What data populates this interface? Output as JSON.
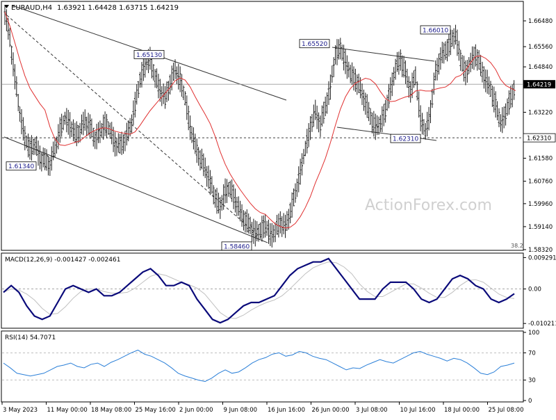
{
  "chart_data": {
    "type": "candlestick",
    "symbol_label": "EURAUD,H4",
    "ohlc_label": "1.63921 1.64428 1.63715 1.64219",
    "watermark": "ActionForex.com",
    "price_axis_labels": [
      "1.66480",
      "1.65560",
      "1.64840",
      "1.63220",
      "1.61580",
      "1.60760",
      "1.59960",
      "1.59140",
      "1.58320"
    ],
    "price_range": [
      1.5832,
      1.6715
    ],
    "current_price": {
      "value": 1.64219,
      "label": "1.64219"
    },
    "support_line": {
      "value": 1.6231,
      "label": "1.62310"
    },
    "fib_label": "38.2",
    "annotations": [
      {
        "label": "1.61340",
        "price": 1.6134
      },
      {
        "label": "1.65130",
        "price": 1.6513
      },
      {
        "label": "1.58460",
        "price": 1.5846
      },
      {
        "label": "1.65520",
        "price": 1.6552
      },
      {
        "label": "1.62310",
        "price": 1.6231
      },
      {
        "label": "1.66010",
        "price": 1.6601
      }
    ],
    "x_labels": [
      "3 May 2023",
      "11 May 00:00",
      "18 May 08:00",
      "25 May 16:00",
      "2 Jun 00:00",
      "9 Jun 08:00",
      "16 Jun 16:00",
      "26 Jun 00:00",
      "3 Jul 08:00",
      "10 Jul 16:00",
      "18 Jul 00:00",
      "25 Jul 08:00"
    ],
    "close_path": [
      1.668,
      1.658,
      1.645,
      1.632,
      1.623,
      1.619,
      1.621,
      1.616,
      1.615,
      1.614,
      1.619,
      1.626,
      1.63,
      1.628,
      1.624,
      1.626,
      1.629,
      1.627,
      1.623,
      1.625,
      1.628,
      1.626,
      1.621,
      1.62,
      1.623,
      1.626,
      1.635,
      1.644,
      1.649,
      1.651,
      1.645,
      1.64,
      1.637,
      1.643,
      1.647,
      1.644,
      1.637,
      1.627,
      1.62,
      1.616,
      1.612,
      1.607,
      1.602,
      1.598,
      1.604,
      1.605,
      1.601,
      1.596,
      1.594,
      1.591,
      1.589,
      1.59,
      1.592,
      1.588,
      1.59,
      1.593,
      1.591,
      1.597,
      1.603,
      1.611,
      1.619,
      1.627,
      1.632,
      1.628,
      1.634,
      1.641,
      1.653,
      1.655,
      1.65,
      1.646,
      1.644,
      1.64,
      1.636,
      1.63,
      1.627,
      1.628,
      1.633,
      1.64,
      1.648,
      1.651,
      1.646,
      1.64,
      1.645,
      1.63,
      1.625,
      1.633,
      1.646,
      1.652,
      1.654,
      1.657,
      1.66,
      1.651,
      1.646,
      1.65,
      1.653,
      1.648,
      1.644,
      1.64,
      1.635,
      1.628,
      1.632,
      1.637,
      1.642
    ],
    "macd": {
      "label": "MACD(12,26,9) -0.001427 -0.002461",
      "axis_labels": [
        "0.009291",
        "0.00",
        "-0.010211"
      ],
      "range": [
        -0.0112,
        0.0102
      ],
      "main": [
        -0.001,
        0.001,
        -0.001,
        -0.005,
        -0.008,
        -0.009,
        -0.008,
        -0.004,
        0.0,
        0.001,
        0.0,
        -0.001,
        0.0,
        -0.002,
        -0.002,
        -0.001,
        0.001,
        0.003,
        0.005,
        0.006,
        0.004,
        0.001,
        0.001,
        0.002,
        0.001,
        -0.003,
        -0.006,
        -0.009,
        -0.01,
        -0.009,
        -0.007,
        -0.005,
        -0.004,
        -0.004,
        -0.003,
        -0.002,
        0.001,
        0.004,
        0.006,
        0.007,
        0.008,
        0.008,
        0.009,
        0.006,
        0.003,
        0.0,
        -0.003,
        -0.003,
        -0.003,
        0.0,
        0.002,
        0.002,
        0.002,
        0.0,
        -0.003,
        -0.004,
        -0.003,
        0.0,
        0.003,
        0.004,
        0.003,
        0.001,
        0.0,
        -0.003,
        -0.004,
        -0.003,
        -0.0014
      ],
      "signal_offset": 2
    },
    "rsi": {
      "label": "RSI(14) 54.7071",
      "axis_labels": [
        "100",
        "70",
        "30",
        "0"
      ],
      "levels": [
        70,
        30
      ],
      "values": [
        55,
        48,
        40,
        38,
        36,
        38,
        40,
        45,
        50,
        52,
        55,
        50,
        48,
        53,
        55,
        50,
        56,
        60,
        65,
        70,
        74,
        68,
        65,
        60,
        55,
        48,
        40,
        36,
        33,
        30,
        28,
        33,
        40,
        45,
        40,
        42,
        48,
        55,
        60,
        63,
        68,
        70,
        65,
        67,
        72,
        70,
        65,
        62,
        60,
        55,
        50,
        45,
        48,
        47,
        52,
        56,
        60,
        57,
        55,
        60,
        65,
        70,
        72,
        68,
        65,
        62,
        58,
        62,
        60,
        55,
        48,
        40,
        38,
        42,
        50,
        52,
        55
      ]
    }
  }
}
